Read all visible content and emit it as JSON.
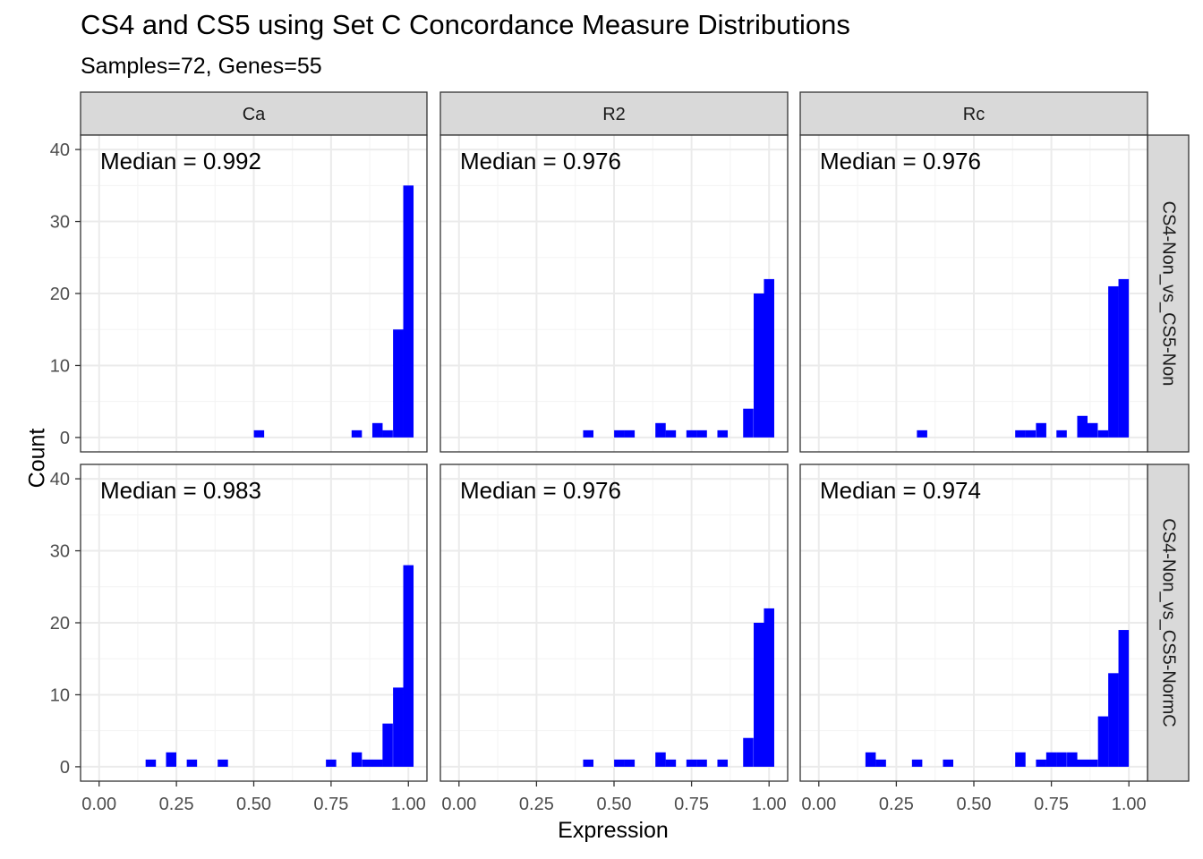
{
  "title": "CS4 and CS5 using Set C Concordance Measure Distributions",
  "subtitle": "Samples=72, Genes=55",
  "xlabel": "Expression",
  "ylabel": "Count",
  "colors": {
    "bar": "#0000FF",
    "strip": "#D9D9D9",
    "grid": "#EBEBEB",
    "panel_border": "#333333"
  },
  "chart_data": {
    "type": "bar",
    "subtype": "faceted histogram",
    "columns": [
      "Ca",
      "R2",
      "Rc"
    ],
    "rows": [
      "CS4-Non_vs_CS5-Non",
      "CS4-Non_vs_CS5-NormC"
    ],
    "xlim": [
      -0.06,
      1.06
    ],
    "ylim": [
      -2,
      42
    ],
    "x_ticks": [
      0,
      0.25,
      0.5,
      0.75,
      1
    ],
    "x_tick_labels": [
      "0.00",
      "0.25",
      "0.50",
      "0.75",
      "1.00"
    ],
    "y_ticks": [
      0,
      10,
      20,
      30,
      40
    ],
    "y_tick_labels": [
      "0",
      "10",
      "20",
      "30",
      "40"
    ],
    "bin_width": 0.0333,
    "grid": true,
    "panels": [
      {
        "row": 0,
        "col": 0,
        "annotation": "Median = 0.992",
        "bins": [
          [
            0.517,
            1
          ],
          [
            0.833,
            1
          ],
          [
            0.9,
            2
          ],
          [
            0.933,
            1
          ],
          [
            0.967,
            15
          ],
          [
            1.0,
            35
          ]
        ]
      },
      {
        "row": 0,
        "col": 1,
        "annotation": "Median = 0.976",
        "bins": [
          [
            0.417,
            1
          ],
          [
            0.517,
            1
          ],
          [
            0.55,
            1
          ],
          [
            0.65,
            2
          ],
          [
            0.683,
            1
          ],
          [
            0.75,
            1
          ],
          [
            0.783,
            1
          ],
          [
            0.85,
            1
          ],
          [
            0.933,
            4
          ],
          [
            0.967,
            20
          ],
          [
            1.0,
            22
          ]
        ]
      },
      {
        "row": 0,
        "col": 2,
        "annotation": "Median = 0.976",
        "bins": [
          [
            0.333,
            1
          ],
          [
            0.65,
            1
          ],
          [
            0.683,
            1
          ],
          [
            0.717,
            2
          ],
          [
            0.783,
            1
          ],
          [
            0.85,
            3
          ],
          [
            0.883,
            2
          ],
          [
            0.917,
            1
          ],
          [
            0.95,
            21
          ],
          [
            0.983,
            22
          ]
        ]
      },
      {
        "row": 1,
        "col": 0,
        "annotation": "Median = 0.983",
        "bins": [
          [
            0.167,
            1
          ],
          [
            0.233,
            2
          ],
          [
            0.3,
            1
          ],
          [
            0.4,
            1
          ],
          [
            0.75,
            1
          ],
          [
            0.833,
            2
          ],
          [
            0.867,
            1
          ],
          [
            0.9,
            1
          ],
          [
            0.933,
            6
          ],
          [
            0.967,
            11
          ],
          [
            1.0,
            28
          ]
        ]
      },
      {
        "row": 1,
        "col": 1,
        "annotation": "Median = 0.976",
        "bins": [
          [
            0.417,
            1
          ],
          [
            0.517,
            1
          ],
          [
            0.55,
            1
          ],
          [
            0.65,
            2
          ],
          [
            0.683,
            1
          ],
          [
            0.75,
            1
          ],
          [
            0.783,
            1
          ],
          [
            0.85,
            1
          ],
          [
            0.933,
            4
          ],
          [
            0.967,
            20
          ],
          [
            1.0,
            22
          ]
        ]
      },
      {
        "row": 1,
        "col": 2,
        "annotation": "Median = 0.974",
        "bins": [
          [
            0.167,
            2
          ],
          [
            0.2,
            1
          ],
          [
            0.317,
            1
          ],
          [
            0.417,
            1
          ],
          [
            0.65,
            2
          ],
          [
            0.717,
            1
          ],
          [
            0.75,
            2
          ],
          [
            0.783,
            2
          ],
          [
            0.817,
            2
          ],
          [
            0.85,
            1
          ],
          [
            0.883,
            1
          ],
          [
            0.917,
            7
          ],
          [
            0.95,
            13
          ],
          [
            0.983,
            19
          ]
        ]
      }
    ]
  }
}
